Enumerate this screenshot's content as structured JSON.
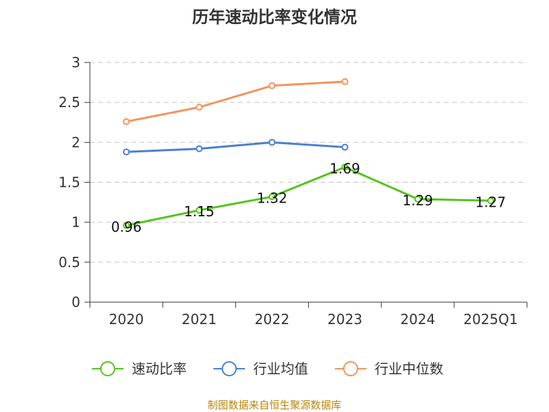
{
  "chart_data": {
    "type": "line",
    "title": "历年速动比率变化情况",
    "categories": [
      "2020",
      "2021",
      "2022",
      "2023",
      "2024",
      "2025Q1"
    ],
    "ylim": [
      0,
      3
    ],
    "yticks": [
      "0",
      "0.5",
      "1",
      "1.5",
      "2",
      "2.5",
      "3"
    ],
    "grid": true,
    "legend_position": "bottom",
    "series": [
      {
        "name": "速动比率",
        "color": "#52c41a",
        "values": [
          0.96,
          1.15,
          1.32,
          1.69,
          1.29,
          1.27
        ],
        "labels": [
          "0.96",
          "1.15",
          "1.32",
          "1.69",
          "1.29",
          "1.27"
        ],
        "show_labels": true
      },
      {
        "name": "行业均值",
        "color": "#4a7fd4",
        "values": [
          1.88,
          1.92,
          2.0,
          1.94,
          null,
          null
        ],
        "show_labels": false
      },
      {
        "name": "行业中位数",
        "color": "#f4935a",
        "values": [
          2.26,
          2.44,
          2.71,
          2.76,
          null,
          null
        ],
        "show_labels": false
      }
    ]
  },
  "footer": {
    "source": "制图数据来自恒生聚源数据库"
  }
}
